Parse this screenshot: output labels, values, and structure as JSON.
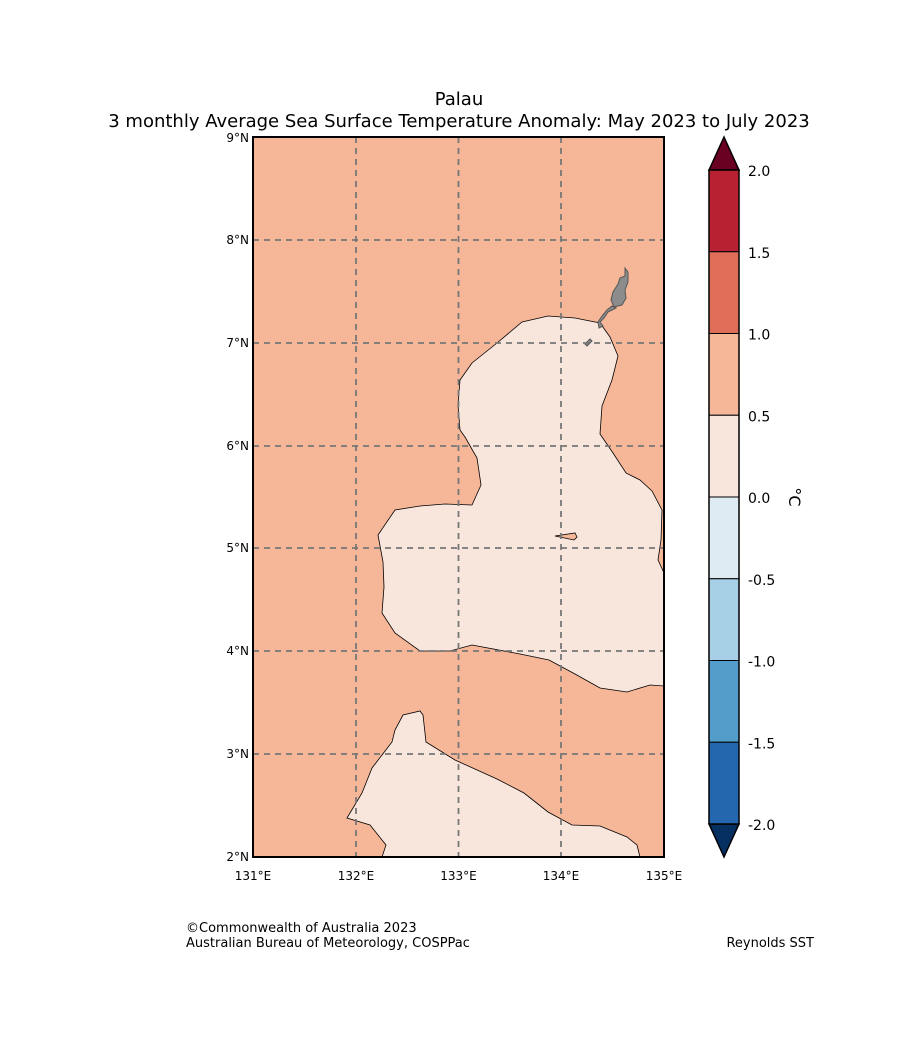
{
  "title": {
    "line1": "Palau",
    "line2": "3 monthly Average Sea Surface Temperature Anomaly: May 2023 to July 2023"
  },
  "map": {
    "lon_range": [
      131,
      135
    ],
    "lat_range": [
      2,
      9
    ],
    "x_ticks": [
      "131°E",
      "132°E",
      "133°E",
      "134°E",
      "135°E"
    ],
    "y_ticks": [
      "9°N",
      "8°N",
      "7°N",
      "6°N",
      "5°N",
      "4°N",
      "3°N",
      "2°N"
    ],
    "background_class": "0.5 to 1.0",
    "region_class": "0.0 to 0.5",
    "land_color": "#8c8c8c"
  },
  "colorbar": {
    "unit": "°C",
    "tick_labels": [
      "2.0",
      "1.5",
      "1.0",
      "0.5",
      "0.0",
      "-0.5",
      "-1.0",
      "-1.5",
      "-2.0"
    ],
    "colors": [
      "#b82131",
      "#de6e58",
      "#f6b799",
      "#f8e6dc",
      "#deebf2",
      "#a7cfe5",
      "#539dcb",
      "#2467ae"
    ],
    "over_color": "#6a0022",
    "under_color": "#053061"
  },
  "footer": {
    "copyright": "©Commonwealth of Australia 2023",
    "agency": "Australian Bureau of Meteorology, COSPPac",
    "source": "Reynolds SST"
  }
}
